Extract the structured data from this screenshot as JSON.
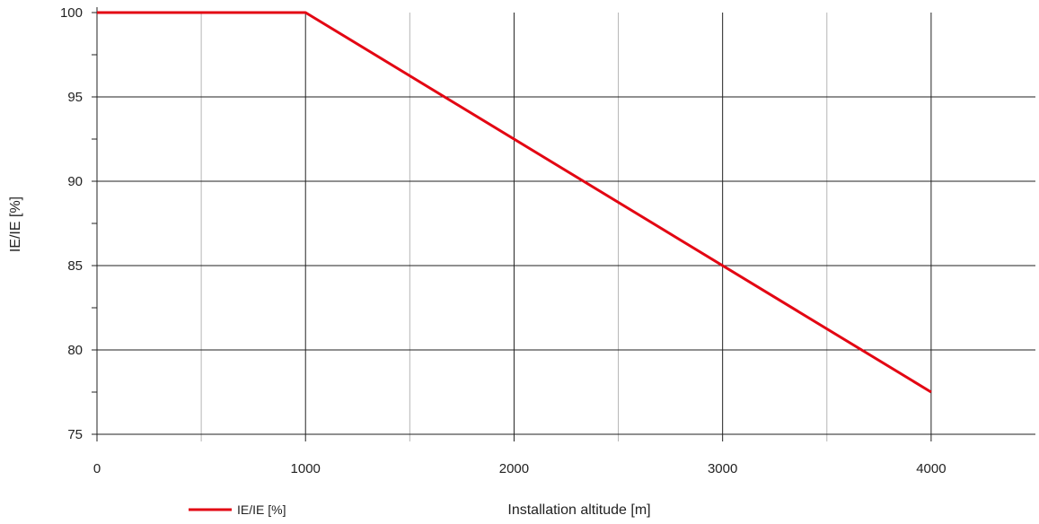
{
  "chart_data": {
    "type": "line",
    "title": "",
    "xlabel": "Installation altitude [m]",
    "ylabel": "IE/IE [%]",
    "xlim": [
      0,
      4500
    ],
    "ylim": [
      75,
      100
    ],
    "x_ticks": [
      0,
      1000,
      2000,
      3000,
      4000
    ],
    "x_minor_ticks": [
      500,
      1500,
      2500,
      3500
    ],
    "y_ticks": [
      75,
      80,
      85,
      90,
      95,
      100
    ],
    "y_minor_ticks": [
      77.5,
      82.5,
      87.5,
      92.5,
      97.5
    ],
    "x_tick_labels": [
      "0",
      "1000",
      "2000",
      "3000",
      "4000"
    ],
    "y_tick_labels": [
      "75",
      "80",
      "85",
      "90",
      "95",
      "100"
    ],
    "grid": true,
    "legend_position": "bottom-left",
    "series": [
      {
        "name": "IE/IE [%]",
        "color": "#e30613",
        "x": [
          0,
          1000,
          4000
        ],
        "y": [
          100,
          100,
          77.5
        ]
      }
    ]
  }
}
